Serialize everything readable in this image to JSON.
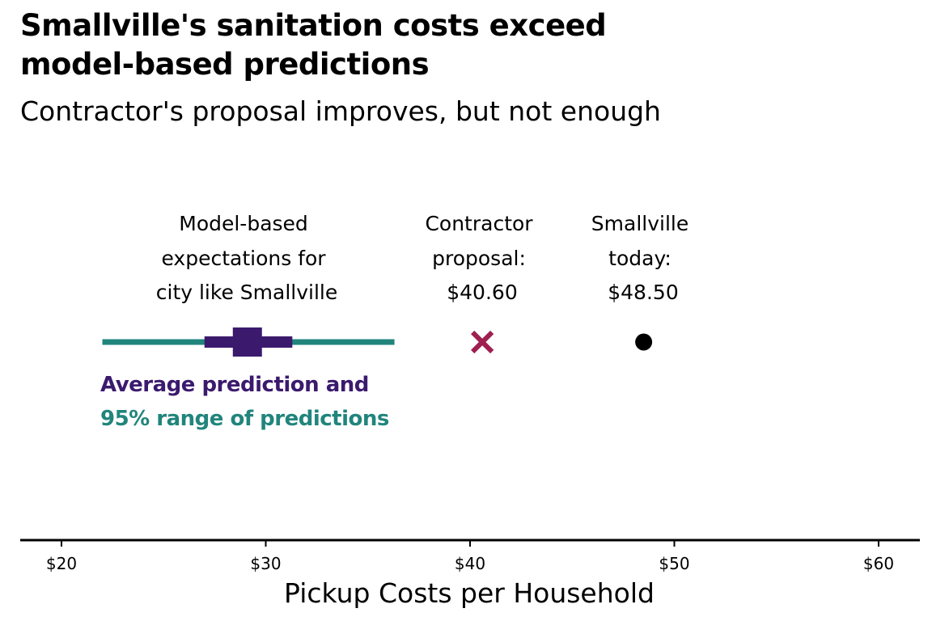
{
  "colors": {
    "range": "#21857c",
    "average": "#3b1a6e",
    "contractor": "#9e1f50",
    "today": "#000000"
  },
  "chart_data": {
    "type": "interval",
    "title_line1": "Smallville's sanitation costs exceed",
    "title_line2": "model-based predictions",
    "subtitle": "Contractor's proposal improves, but not enough",
    "xlabel": "Pickup Costs per Household",
    "xlim": [
      18,
      62
    ],
    "ticks": [
      {
        "value": 20,
        "label": "$20"
      },
      {
        "value": 30,
        "label": "$30"
      },
      {
        "value": 40,
        "label": "$40"
      },
      {
        "value": 50,
        "label": "$50"
      },
      {
        "value": 60,
        "label": "$60"
      }
    ],
    "prediction": {
      "range_95": [
        22.0,
        36.3
      ],
      "inner_range": [
        27.0,
        31.3
      ],
      "average": 29.1,
      "label_lines": [
        "Model-based",
        "expectations for",
        "city like Smallville"
      ]
    },
    "contractor": {
      "value": 40.6,
      "marker": "x",
      "label_lines": [
        "Contractor",
        "proposal:",
        "$40.60"
      ]
    },
    "today": {
      "value": 48.5,
      "marker": "dot",
      "label_lines": [
        "Smallville",
        "today:",
        "$48.50"
      ]
    },
    "legend": {
      "average_label": "Average prediction and",
      "range_label": "95% range of predictions"
    }
  }
}
